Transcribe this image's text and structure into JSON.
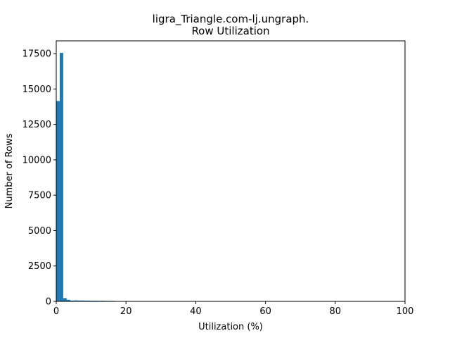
{
  "chart_data": {
    "type": "bar",
    "title_lines": [
      "ligra_Triangle.com-lj.ungraph.",
      "Row Utilization"
    ],
    "xlabel": "Utilization (%)",
    "ylabel": "Number of Rows",
    "xlim": [
      0,
      100
    ],
    "ylim": [
      0,
      18400
    ],
    "xticks": [
      0,
      20,
      40,
      60,
      80,
      100
    ],
    "yticks": [
      0,
      2500,
      5000,
      7500,
      10000,
      12500,
      15000,
      17500
    ],
    "bin_width": 1,
    "bins": [
      {
        "x": 0,
        "value": 14150
      },
      {
        "x": 1,
        "value": 17550
      },
      {
        "x": 2,
        "value": 230
      },
      {
        "x": 3,
        "value": 110
      },
      {
        "x": 4,
        "value": 60
      },
      {
        "x": 5,
        "value": 70
      },
      {
        "x": 6,
        "value": 60
      },
      {
        "x": 7,
        "value": 60
      },
      {
        "x": 8,
        "value": 55
      },
      {
        "x": 9,
        "value": 55
      },
      {
        "x": 10,
        "value": 50
      },
      {
        "x": 11,
        "value": 50
      },
      {
        "x": 12,
        "value": 45
      },
      {
        "x": 13,
        "value": 45
      },
      {
        "x": 14,
        "value": 40
      },
      {
        "x": 15,
        "value": 40
      },
      {
        "x": 16,
        "value": 35
      },
      {
        "x": 17,
        "value": 25
      }
    ],
    "bar_color": "#1f77b4",
    "grid": false
  }
}
